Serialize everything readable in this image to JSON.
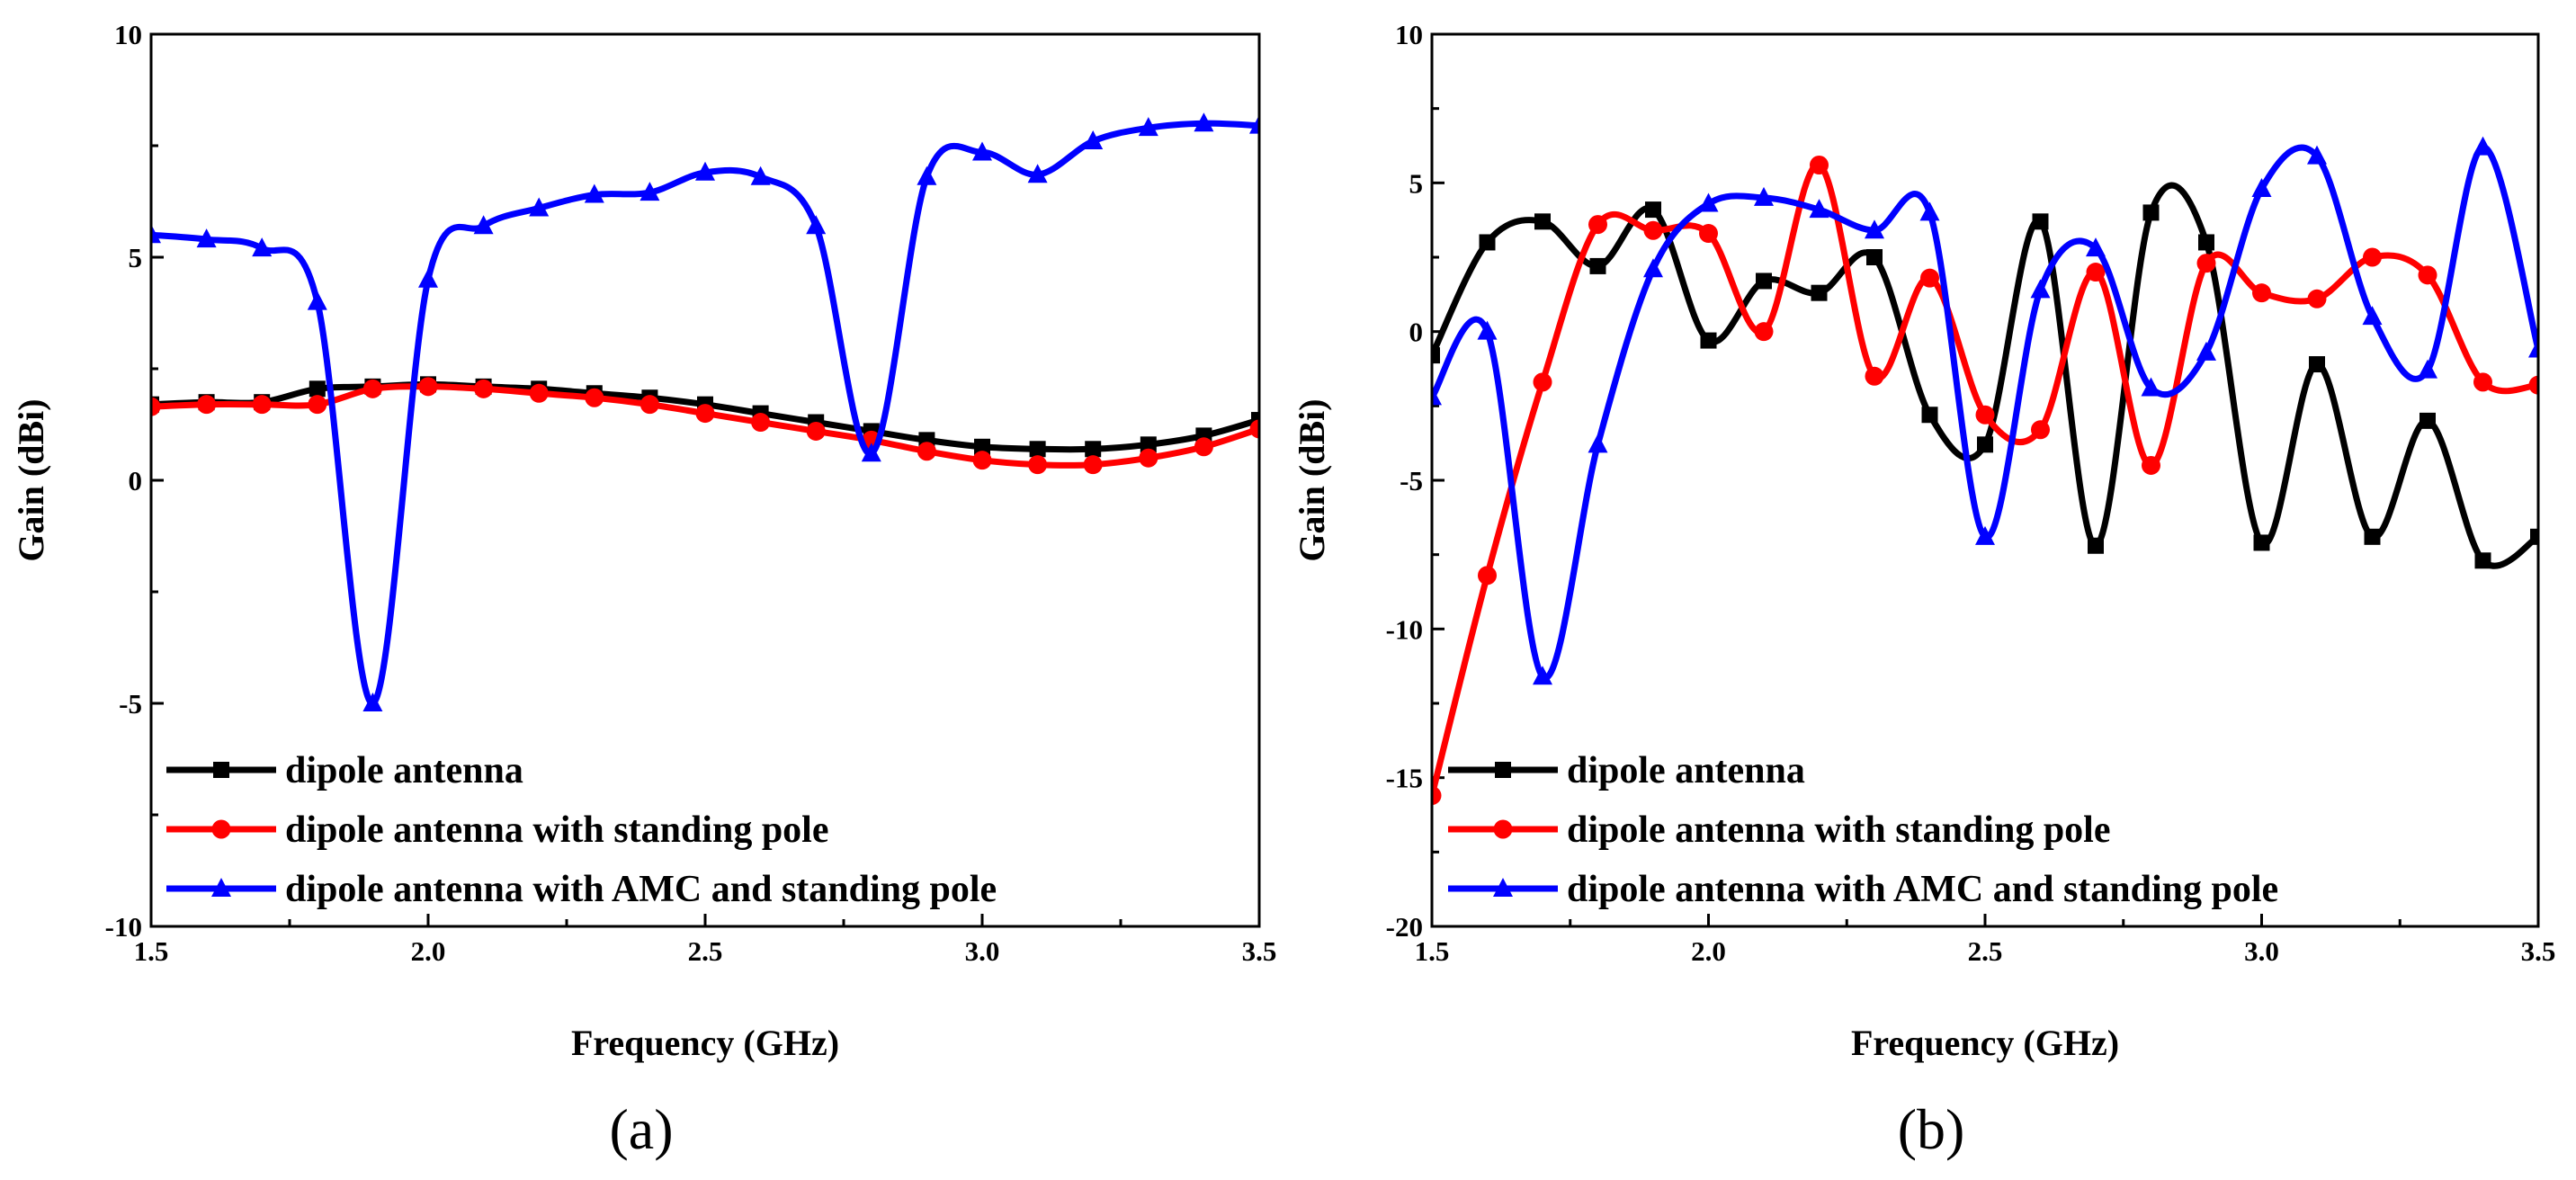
{
  "chart_data": [
    {
      "type": "line",
      "panel_label": "(a)",
      "xlabel": "Frequency (GHz)",
      "ylabel": "Gain (dBi)",
      "xlim": [
        1.5,
        3.5
      ],
      "ylim": [
        -10,
        10
      ],
      "x_ticks": [
        1.5,
        2.0,
        2.5,
        3.0,
        3.5
      ],
      "x_tick_labels": [
        "1.5",
        "2.0",
        "2.5",
        "3.0",
        "3.5"
      ],
      "y_ticks": [
        -10,
        -5,
        0,
        5,
        10
      ],
      "y_tick_labels": [
        "-10",
        "-5",
        "0",
        "5",
        "10"
      ],
      "legend_position": "bottom-left",
      "x": [
        1.5,
        1.6,
        1.7,
        1.8,
        1.9,
        2.0,
        2.1,
        2.2,
        2.3,
        2.4,
        2.5,
        2.6,
        2.7,
        2.8,
        2.9,
        3.0,
        3.1,
        3.2,
        3.3,
        3.4,
        3.5
      ],
      "series": [
        {
          "name": "dipole antenna",
          "color": "#000000",
          "marker": "square",
          "values": [
            1.7,
            1.75,
            1.75,
            2.05,
            2.1,
            2.15,
            2.1,
            2.05,
            1.95,
            1.85,
            1.7,
            1.5,
            1.3,
            1.1,
            0.9,
            0.75,
            0.7,
            0.7,
            0.8,
            1.0,
            1.35
          ]
        },
        {
          "name": "dipole antenna with standing pole",
          "color": "#ff0000",
          "marker": "circle",
          "values": [
            1.65,
            1.7,
            1.7,
            1.7,
            2.05,
            2.1,
            2.05,
            1.95,
            1.85,
            1.7,
            1.5,
            1.3,
            1.1,
            0.9,
            0.65,
            0.45,
            0.35,
            0.35,
            0.5,
            0.75,
            1.15
          ]
        },
        {
          "name": "dipole antenna with AMC and standing pole",
          "color": "#0000ff",
          "marker": "triangle",
          "values": [
            5.5,
            5.4,
            5.2,
            4.0,
            -5.0,
            4.5,
            5.7,
            6.1,
            6.4,
            6.45,
            6.9,
            6.8,
            5.7,
            0.6,
            6.8,
            7.35,
            6.85,
            7.6,
            7.9,
            8.0,
            7.95
          ]
        }
      ]
    },
    {
      "type": "line",
      "panel_label": "(b)",
      "xlabel": "Frequency (GHz)",
      "ylabel": "Gain (dBi)",
      "xlim": [
        1.5,
        3.5
      ],
      "ylim": [
        -20,
        10
      ],
      "x_ticks": [
        1.5,
        2.0,
        2.5,
        3.0,
        3.5
      ],
      "x_tick_labels": [
        "1.5",
        "2.0",
        "2.5",
        "3.0",
        "3.5"
      ],
      "y_ticks": [
        -20,
        -15,
        -10,
        -5,
        0,
        5,
        10
      ],
      "y_tick_labels": [
        "-20",
        "-15",
        "-10",
        "-5",
        "0",
        "5",
        "10"
      ],
      "legend_position": "bottom-left",
      "x": [
        1.5,
        1.6,
        1.7,
        1.8,
        1.9,
        2.0,
        2.1,
        2.2,
        2.3,
        2.4,
        2.5,
        2.6,
        2.7,
        2.8,
        2.9,
        3.0,
        3.1,
        3.2,
        3.3,
        3.4,
        3.5
      ],
      "series": [
        {
          "name": "dipole antenna",
          "color": "#000000",
          "marker": "square",
          "values": [
            -0.8,
            3.0,
            3.7,
            2.2,
            4.1,
            -0.3,
            1.7,
            1.3,
            2.5,
            -2.8,
            -3.8,
            3.7,
            -7.2,
            4.0,
            3.0,
            -7.1,
            -1.1,
            -6.9,
            -3.0,
            -7.7,
            -6.9
          ]
        },
        {
          "name": "dipole antenna with standing pole",
          "color": "#ff0000",
          "marker": "circle",
          "values": [
            -15.6,
            -8.2,
            -1.7,
            3.6,
            3.4,
            3.3,
            0.0,
            5.6,
            -1.5,
            1.8,
            -2.8,
            -3.3,
            2.0,
            -4.5,
            2.3,
            1.3,
            1.1,
            2.5,
            1.9,
            -1.7,
            -1.8
          ]
        },
        {
          "name": "dipole antenna with AMC and standing pole",
          "color": "#0000ff",
          "marker": "triangle",
          "values": [
            -2.2,
            0.0,
            -11.6,
            -3.8,
            2.1,
            4.3,
            4.5,
            4.1,
            3.4,
            4.0,
            -6.9,
            1.4,
            2.8,
            -1.9,
            -0.7,
            4.8,
            5.9,
            0.5,
            -1.3,
            6.2,
            -0.6
          ]
        }
      ]
    }
  ]
}
